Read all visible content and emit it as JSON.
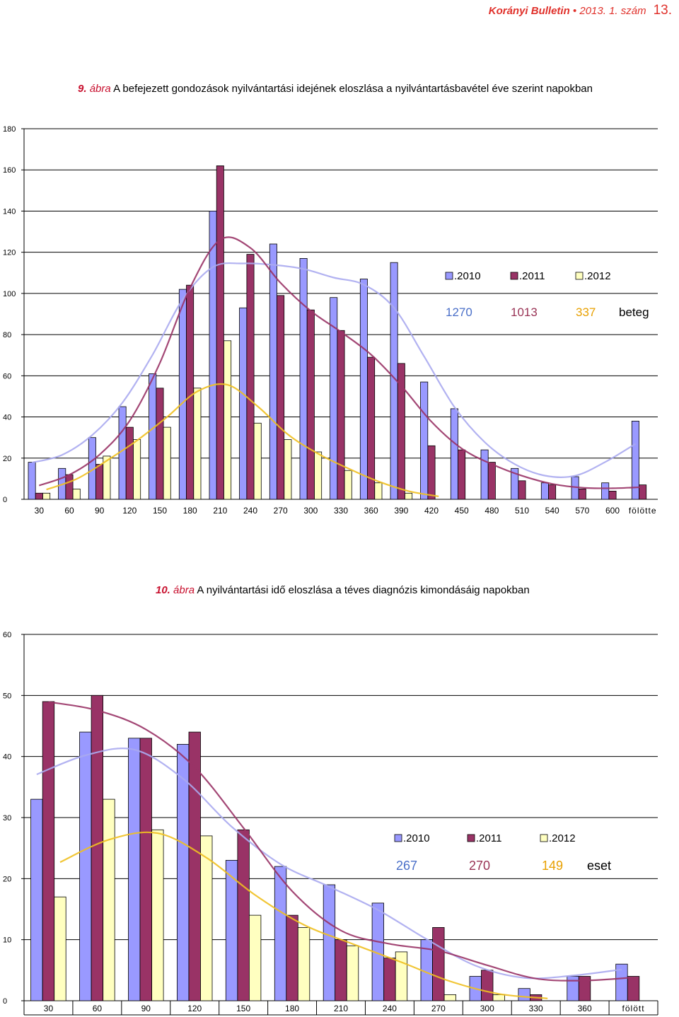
{
  "header": {
    "journal": "Korányi Bulletin",
    "bullet": " • ",
    "issue": "2013. 1. szám",
    "page": "13."
  },
  "figure9": {
    "number": "9.",
    "label": "ábra",
    "title": "A befejezett gondozások nyilvántartási idejének eloszlása a nyilvántartásbavétel éve szerint napokban"
  },
  "figure10": {
    "number": "10.",
    "label": "ábra",
    "title": "A nyilvántartási idő eloszlása a téves diagnózis kimondásáig napokban"
  },
  "colors": {
    "s2010": "#9999ff",
    "s2011": "#993366",
    "s2012": "#ffffc0",
    "trend2010": "#aaaaf0",
    "trend2011": "#993366",
    "trend2012": "#f0c020",
    "count2010": "#4a6fc8",
    "count2011": "#993355",
    "count2012": "#e8a000"
  },
  "chart_data": [
    {
      "type": "bar",
      "categories": [
        "30",
        "60",
        "90",
        "120",
        "150",
        "180",
        "210",
        "240",
        "270",
        "300",
        "330",
        "360",
        "390",
        "420",
        "450",
        "480",
        "510",
        "540",
        "570",
        "600",
        "fölötte"
      ],
      "series": [
        {
          "name": ".2010",
          "total": "1270",
          "values": [
            18,
            15,
            30,
            45,
            61,
            102,
            140,
            93,
            124,
            117,
            98,
            107,
            115,
            57,
            44,
            24,
            15,
            8,
            11,
            8,
            38
          ]
        },
        {
          "name": ".2011",
          "total": "1013",
          "values": [
            3,
            12,
            17,
            35,
            54,
            104,
            162,
            119,
            99,
            92,
            82,
            69,
            66,
            26,
            24,
            18,
            9,
            7,
            5,
            4,
            7
          ]
        },
        {
          "name": ".2012",
          "total": "337",
          "values": [
            3,
            5,
            21,
            29,
            35,
            54,
            77,
            37,
            29,
            23,
            14,
            8,
            3,
            0,
            0,
            0,
            0,
            0,
            0,
            0,
            0
          ]
        }
      ],
      "unit_label": "beteg",
      "ylim": [
        0,
        180
      ],
      "yticks": [
        0,
        20,
        40,
        60,
        80,
        100,
        120,
        140,
        160,
        180
      ],
      "legend_position": "right",
      "trendlines": true
    },
    {
      "type": "bar",
      "categories": [
        "30",
        "60",
        "90",
        "120",
        "150",
        "180",
        "210",
        "240",
        "270",
        "300",
        "330",
        "360",
        "fölött"
      ],
      "series": [
        {
          "name": ".2010",
          "total": "267",
          "values": [
            33,
            44,
            43,
            42,
            23,
            22,
            19,
            16,
            10,
            4,
            2,
            4,
            6
          ]
        },
        {
          "name": ".2011",
          "total": "270",
          "values": [
            49,
            50,
            43,
            44,
            28,
            14,
            10,
            7,
            12,
            5,
            1,
            4,
            4
          ]
        },
        {
          "name": ".2012",
          "total": "149",
          "values": [
            17,
            33,
            28,
            27,
            14,
            12,
            9,
            8,
            1,
            1,
            0,
            0,
            0
          ]
        }
      ],
      "unit_label": "eset",
      "ylim": [
        0,
        60
      ],
      "yticks": [
        0,
        10,
        20,
        30,
        40,
        50,
        60
      ],
      "legend_position": "right",
      "trendlines": true
    }
  ]
}
